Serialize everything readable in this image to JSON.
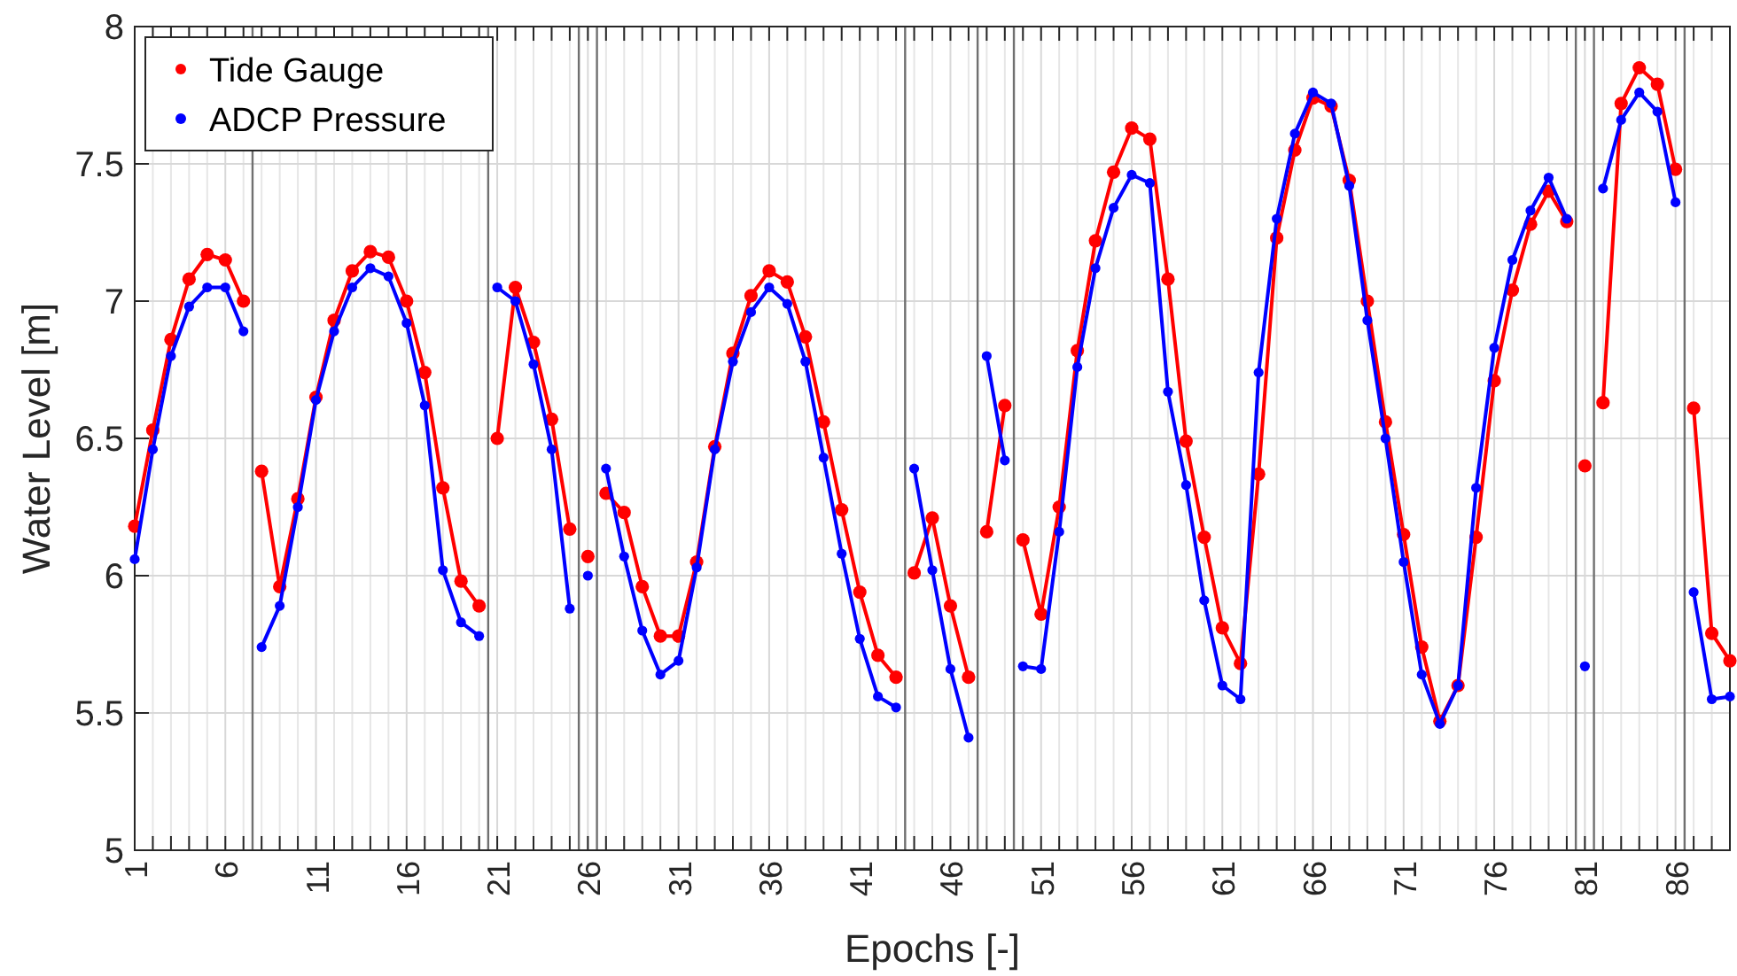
{
  "chart_data": {
    "type": "line",
    "xlabel": "Epochs [-]",
    "ylabel": "Water Level [m]",
    "x": [
      1,
      2,
      3,
      4,
      5,
      6,
      7,
      7.5,
      8,
      9,
      10,
      11,
      12,
      13,
      14,
      15,
      16,
      17,
      18,
      19,
      20,
      20.5,
      21,
      22,
      23,
      24,
      25,
      25.5,
      26,
      26.5,
      27,
      28,
      29,
      30,
      31,
      32,
      33,
      34,
      35,
      36,
      37,
      38,
      39,
      40,
      41,
      42,
      43,
      43.5,
      44,
      45,
      46,
      47,
      47.5,
      48,
      49,
      49.5,
      50,
      51,
      52,
      53,
      54,
      55,
      56,
      57,
      58,
      59,
      60,
      61,
      62,
      63,
      64,
      65,
      66,
      67,
      68,
      69,
      70,
      71,
      72,
      73,
      74,
      75,
      76,
      77,
      78,
      79,
      80,
      80.5,
      81,
      81.5,
      82,
      83,
      84,
      85,
      86,
      86.5,
      87,
      88,
      89
    ],
    "series": [
      {
        "name": "Tide Gauge",
        "color": "#ff0000",
        "values": [
          6.18,
          6.53,
          6.86,
          7.08,
          7.17,
          7.15,
          7.0,
          null,
          6.38,
          5.96,
          6.28,
          6.65,
          6.93,
          7.11,
          7.18,
          7.16,
          7.0,
          6.74,
          6.32,
          5.98,
          5.89,
          null,
          6.5,
          7.05,
          6.85,
          6.57,
          6.17,
          null,
          6.07,
          null,
          6.3,
          6.23,
          5.96,
          5.78,
          5.78,
          6.05,
          6.47,
          6.81,
          7.02,
          7.11,
          7.07,
          6.87,
          6.56,
          6.24,
          5.94,
          5.71,
          5.63,
          null,
          6.01,
          6.21,
          5.89,
          5.63,
          null,
          6.16,
          6.62,
          null,
          6.13,
          5.86,
          6.25,
          6.82,
          7.22,
          7.47,
          7.63,
          7.59,
          7.08,
          6.49,
          6.14,
          5.81,
          5.68,
          6.37,
          7.23,
          7.55,
          7.74,
          7.71,
          7.44,
          7.0,
          6.56,
          6.15,
          5.74,
          5.47,
          5.6,
          6.14,
          6.71,
          7.04,
          7.28,
          7.4,
          7.29,
          null,
          6.4,
          null,
          6.63,
          7.72,
          7.85,
          7.79,
          7.48,
          null,
          6.61,
          5.79,
          5.69
        ]
      },
      {
        "name": "ADCP Pressure",
        "color": "#0000ff",
        "values": [
          6.06,
          6.46,
          6.8,
          6.98,
          7.05,
          7.05,
          6.89,
          null,
          5.74,
          5.89,
          6.25,
          6.64,
          6.89,
          7.05,
          7.12,
          7.09,
          6.92,
          6.62,
          6.02,
          5.83,
          5.78,
          null,
          7.05,
          7.0,
          6.77,
          6.46,
          5.88,
          null,
          6.0,
          null,
          6.39,
          6.07,
          5.8,
          5.64,
          5.69,
          6.03,
          6.46,
          6.78,
          6.96,
          7.05,
          6.99,
          6.78,
          6.43,
          6.08,
          5.77,
          5.56,
          5.52,
          null,
          6.39,
          6.02,
          5.66,
          5.41,
          null,
          6.8,
          6.42,
          null,
          5.67,
          5.66,
          6.16,
          6.76,
          7.12,
          7.34,
          7.46,
          7.43,
          6.67,
          6.33,
          5.91,
          5.6,
          5.55,
          6.74,
          7.3,
          7.61,
          7.76,
          7.72,
          7.42,
          6.93,
          6.5,
          6.05,
          5.64,
          5.46,
          5.6,
          6.32,
          6.83,
          7.15,
          7.33,
          7.45,
          7.3,
          null,
          5.67,
          null,
          7.41,
          7.66,
          7.76,
          7.69,
          7.36,
          null,
          5.94,
          5.55,
          5.56
        ]
      }
    ],
    "xlim": [
      1,
      89
    ],
    "ylim": [
      5,
      8
    ],
    "xticks": [
      1,
      {
        "value": 2,
        "label": null
      },
      {
        "value": 3,
        "label": null
      },
      {
        "value": 4,
        "label": null
      },
      {
        "value": 5,
        "label": null
      },
      6,
      {
        "value": 7,
        "label": null
      },
      {
        "value": 8,
        "label": null
      },
      {
        "value": 9,
        "label": null
      },
      {
        "value": 10,
        "label": null
      },
      11,
      {
        "value": 12,
        "label": null
      },
      {
        "value": 13,
        "label": null
      },
      {
        "value": 14,
        "label": null
      },
      {
        "value": 15,
        "label": null
      },
      16,
      {
        "value": 17,
        "label": null
      },
      {
        "value": 18,
        "label": null
      },
      {
        "value": 19,
        "label": null
      },
      {
        "value": 20,
        "label": null
      },
      21,
      {
        "value": 22,
        "label": null
      },
      {
        "value": 23,
        "label": null
      },
      {
        "value": 24,
        "label": null
      },
      {
        "value": 25,
        "label": null
      },
      26,
      {
        "value": 27,
        "label": null
      },
      {
        "value": 28,
        "label": null
      },
      {
        "value": 29,
        "label": null
      },
      {
        "value": 30,
        "label": null
      },
      31,
      {
        "value": 32,
        "label": null
      },
      {
        "value": 33,
        "label": null
      },
      {
        "value": 34,
        "label": null
      },
      {
        "value": 35,
        "label": null
      },
      36,
      {
        "value": 37,
        "label": null
      },
      {
        "value": 38,
        "label": null
      },
      {
        "value": 39,
        "label": null
      },
      {
        "value": 40,
        "label": null
      },
      41,
      {
        "value": 42,
        "label": null
      },
      {
        "value": 43,
        "label": null
      },
      {
        "value": 44,
        "label": null
      },
      {
        "value": 45,
        "label": null
      },
      46,
      {
        "value": 47,
        "label": null
      },
      {
        "value": 48,
        "label": null
      },
      {
        "value": 49,
        "label": null
      },
      {
        "value": 50,
        "label": null
      },
      51,
      {
        "value": 52,
        "label": null
      },
      {
        "value": 53,
        "label": null
      },
      {
        "value": 54,
        "label": null
      },
      {
        "value": 55,
        "label": null
      },
      56,
      {
        "value": 57,
        "label": null
      },
      {
        "value": 58,
        "label": null
      },
      {
        "value": 59,
        "label": null
      },
      {
        "value": 60,
        "label": null
      },
      61,
      {
        "value": 62,
        "label": null
      },
      {
        "value": 63,
        "label": null
      },
      {
        "value": 64,
        "label": null
      },
      {
        "value": 65,
        "label": null
      },
      66,
      {
        "value": 67,
        "label": null
      },
      {
        "value": 68,
        "label": null
      },
      {
        "value": 69,
        "label": null
      },
      {
        "value": 70,
        "label": null
      },
      71,
      {
        "value": 72,
        "label": null
      },
      {
        "value": 73,
        "label": null
      },
      {
        "value": 74,
        "label": null
      },
      {
        "value": 75,
        "label": null
      },
      76,
      {
        "value": 77,
        "label": null
      },
      {
        "value": 78,
        "label": null
      },
      {
        "value": 79,
        "label": null
      },
      {
        "value": 80,
        "label": null
      },
      81,
      {
        "value": 82,
        "label": null
      },
      {
        "value": 83,
        "label": null
      },
      {
        "value": 84,
        "label": null
      },
      {
        "value": 85,
        "label": null
      },
      86,
      {
        "value": 87,
        "label": null
      },
      {
        "value": 88,
        "label": null
      },
      {
        "value": 89,
        "label": null
      }
    ],
    "yticks": [
      5,
      5.5,
      6,
      6.5,
      7,
      7.5,
      8
    ],
    "ref_lines": [
      {
        "axis": "x",
        "value": 7.5,
        "color": "#707070"
      },
      {
        "axis": "x",
        "value": 20.5,
        "color": "#707070"
      },
      {
        "axis": "x",
        "value": 25.5,
        "color": "#707070"
      },
      {
        "axis": "x",
        "value": 26.5,
        "color": "#707070"
      },
      {
        "axis": "x",
        "value": 43.5,
        "color": "#707070"
      },
      {
        "axis": "x",
        "value": 47.5,
        "color": "#707070"
      },
      {
        "axis": "x",
        "value": 49.5,
        "color": "#707070"
      },
      {
        "axis": "x",
        "value": 80.5,
        "color": "#707070"
      },
      {
        "axis": "x",
        "value": 81.5,
        "color": "#707070"
      },
      {
        "axis": "x",
        "value": 86.5,
        "color": "#707070"
      }
    ],
    "grid": true,
    "legend": "top left",
    "marker": "circle",
    "line_style": "solid"
  }
}
